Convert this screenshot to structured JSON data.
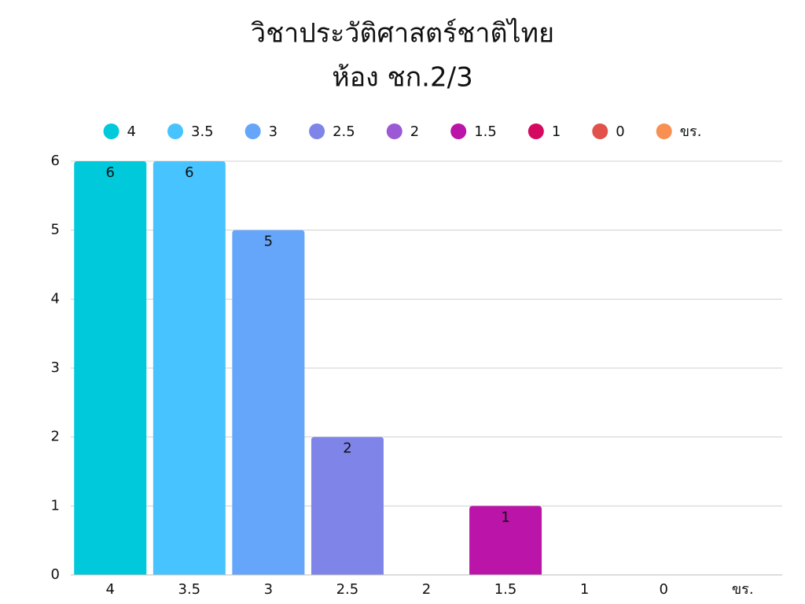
{
  "chart_data": {
    "type": "bar",
    "title": "วิชาประวัติศาสตร์ชาติไทย",
    "subtitle": "ห้อง ชก.2/3",
    "categories": [
      "4",
      "3.5",
      "3",
      "2.5",
      "2",
      "1.5",
      "1",
      "0",
      "ขร."
    ],
    "values": [
      6,
      6,
      5,
      2,
      0,
      1,
      0,
      0,
      0
    ],
    "colors": [
      "#00c9db",
      "#47c3ff",
      "#65a6fa",
      "#7f84e8",
      "#9b59d6",
      "#bb14a8",
      "#d4095f",
      "#e0524b",
      "#f79050"
    ],
    "value_label_colors": [
      "#111111",
      "#111111",
      "#111111",
      "#ffffff",
      "#ffffff",
      "#ffffff",
      "#ffffff",
      "#ffffff",
      "#ffffff"
    ],
    "ylim": [
      0,
      6
    ],
    "yticks": [
      0,
      1,
      2,
      3,
      4,
      5,
      6
    ],
    "grid": true,
    "legend": "top"
  }
}
